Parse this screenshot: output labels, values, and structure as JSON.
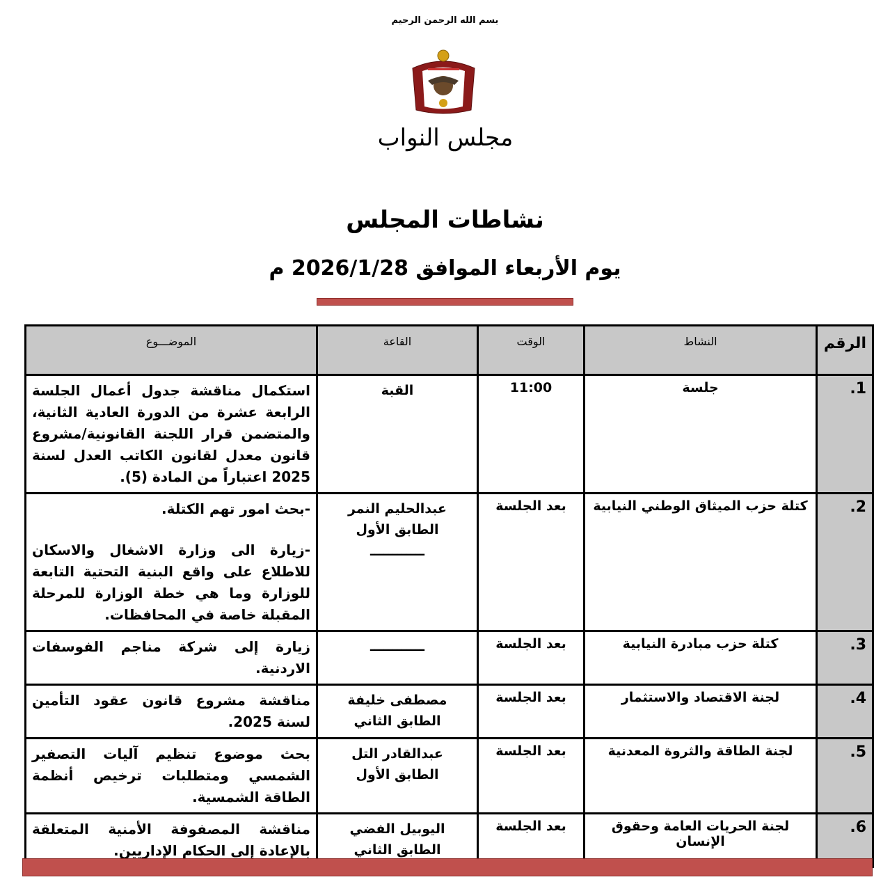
{
  "header": {
    "basmala": "بسم الله الرحمن الرحيم",
    "logo_text": "مجلس النواب",
    "title": "نشاطات المجلس",
    "date_line": "يوم الأربعاء الموافق 2026/1/28 م"
  },
  "colors": {
    "accent_bar": "#c0504d",
    "header_fill": "#c8c8c8"
  },
  "table": {
    "headers": {
      "number": "الرقم",
      "activity": "النشاط",
      "time": "الوقت",
      "hall": "القاعة",
      "subject": "الموضـــوع"
    },
    "rows": [
      {
        "number": "1.",
        "activity": "جلسة",
        "time": "11:00",
        "hall": [
          "القبة"
        ],
        "subject": [
          "استكمال مناقشة جدول أعمال الجلسة الرابعة عشرة من الدورة العادية الثانية، والمتضمن قرار اللجنة القانونية/مشروع قانون معدل لقانون الكاتب العدل لسنة 2025 اعتباراً من المادة (5)."
        ]
      },
      {
        "number": "2.",
        "activity": "كتلة حزب الميثاق الوطني النيابية",
        "time": "بعد الجلسة",
        "hall": [
          "عبدالحليم النمر",
          "الطابق الأول",
          "ــــــــــــ"
        ],
        "subject": [
          "-بحث امور تهم الكتلة.",
          "-زيارة الى وزارة الاشغال والاسكان للاطلاع على واقع البنية التحتية التابعة للوزارة وما هي خطة الوزارة للمرحلة المقبلة خاصة في المحافظات."
        ]
      },
      {
        "number": "3.",
        "activity": "كتلة حزب مبادرة النيابية",
        "time": "بعد الجلسة",
        "hall": [
          "ــــــــــــ"
        ],
        "subject": [
          "زيارة إلى شركة مناجم الفوسفات الاردنية."
        ]
      },
      {
        "number": "4.",
        "activity": "لجنة الاقتصاد والاستثمار",
        "time": "بعد الجلسة",
        "hall": [
          "مصطفى خليفة",
          "الطابق الثاني"
        ],
        "subject": [
          "مناقشة مشروع قانون عقود التأمين لسنة 2025."
        ]
      },
      {
        "number": "5.",
        "activity": "لجنة الطاقة والثروة المعدنية",
        "time": "بعد الجلسة",
        "hall": [
          "عبدالقادر التل",
          "الطابق الأول"
        ],
        "subject": [
          "بحث موضوع تنظيم آليات التصفير الشمسي ومتطلبات ترخيص أنظمة الطاقة الشمسية."
        ]
      },
      {
        "number": "6.",
        "activity": "لجنة الحريات العامة وحقوق الإنسان",
        "time": "بعد الجلسة",
        "hall": [
          "اليوبيل الفضي",
          "الطابق الثاني"
        ],
        "subject": [
          "مناقشة المصفوفة الأمنية المتعلقة بالإعادة إلى الحكام الإداريين."
        ]
      }
    ]
  }
}
